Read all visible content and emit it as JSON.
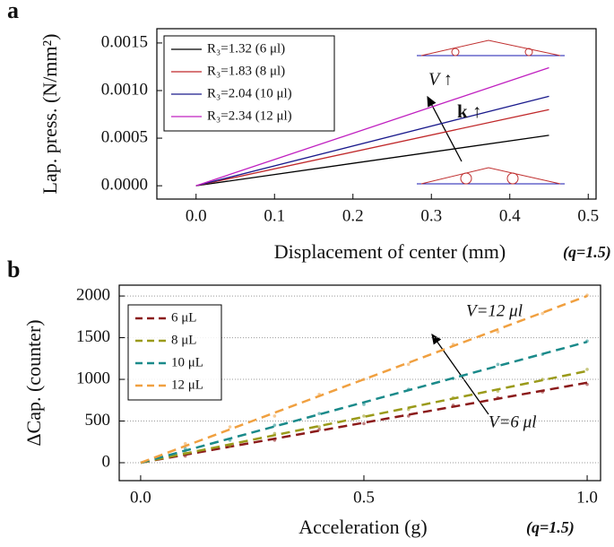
{
  "chart_data": [
    {
      "type": "line",
      "title": "a",
      "x_label": "Displacement of center (mm)",
      "x_label_note": "(q=1.5)",
      "y_label": "Lap. press. (N/mm²)",
      "x": [
        0,
        0.45
      ],
      "series": [
        {
          "name": "R₃=1.32 (6 μl)",
          "color": "#000000",
          "values": [
            0,
            0.00053
          ]
        },
        {
          "name": "R₃=1.83 (8 μl)",
          "color": "#c0282a",
          "values": [
            0,
            0.0008
          ]
        },
        {
          "name": "R₃=2.04 (10 μl)",
          "color": "#1a1a8c",
          "values": [
            0,
            0.00094
          ]
        },
        {
          "name": "R₃=2.34 (12 μl)",
          "color": "#c020c0",
          "values": [
            0,
            0.00124
          ]
        }
      ],
      "xlim": [
        -0.05,
        0.51
      ],
      "xticks": [
        {
          "value": 0,
          "label": "0.0"
        },
        0.1,
        0.2,
        0.3,
        0.4,
        0.5
      ],
      "ylim": [
        -0.00014,
        0.00165
      ],
      "yticks": [
        {
          "value": 0,
          "label": "0.0000"
        },
        {
          "value": 0.0005,
          "label": "0.0005"
        },
        {
          "value": 0.001,
          "label": "0.0010"
        },
        {
          "value": 0.0015,
          "label": "0.0015"
        }
      ],
      "grid": false,
      "dashed": false,
      "legend": "upper left",
      "annotations": [
        {
          "text": "V ↑",
          "color": "#000000",
          "style": "italic"
        },
        {
          "text": "k ↑",
          "color": "#e00000",
          "style": "bold"
        }
      ]
    },
    {
      "type": "line",
      "title": "b",
      "x_label": "Acceleration (g)",
      "x_label_note": "(q=1.5)",
      "y_label": "ΔCap. (counter)",
      "x": [
        0,
        1
      ],
      "series": [
        {
          "name": "6 μL",
          "color": "#8b1a1a",
          "values": [
            0,
            960
          ],
          "points_x": [
            0.1,
            0.2,
            0.3,
            0.4,
            0.5,
            0.6,
            0.7,
            0.8,
            0.9,
            1.0
          ],
          "points_y": [
            80,
            210,
            270,
            400,
            470,
            560,
            690,
            780,
            850,
            940
          ]
        },
        {
          "name": "8 μL",
          "color": "#9a9a1a",
          "values": [
            0,
            1100
          ],
          "points_x": [
            0.1,
            0.2,
            0.3,
            0.4,
            0.5,
            0.6,
            0.7,
            0.8,
            0.9,
            1.0
          ],
          "points_y": [
            120,
            200,
            350,
            430,
            560,
            640,
            780,
            860,
            1000,
            1120
          ]
        },
        {
          "name": "10 μL",
          "color": "#1a8a8a",
          "values": [
            0,
            1450
          ],
          "points_x": [
            0.1,
            0.2,
            0.3,
            0.4,
            0.5,
            0.6,
            0.7,
            0.8,
            0.9,
            1.0
          ],
          "points_y": [
            170,
            270,
            450,
            590,
            700,
            880,
            1010,
            1180,
            1300,
            1460
          ]
        },
        {
          "name": "12 μL",
          "color": "#f0a040",
          "values": [
            0,
            2000
          ],
          "points_x": [
            0.1,
            0.2,
            0.3,
            0.4,
            0.5,
            0.6,
            0.7,
            0.8,
            0.9,
            1.0
          ],
          "points_y": [
            230,
            430,
            560,
            820,
            1000,
            1180,
            1420,
            1570,
            1790,
            2010
          ]
        }
      ],
      "xlim": [
        -0.048,
        1.03
      ],
      "xticks": [
        {
          "value": 0,
          "label": "0.0"
        },
        0.5,
        {
          "value": 1,
          "label": "1.0"
        }
      ],
      "ylim": [
        -215,
        2130
      ],
      "yticks": [
        0,
        500,
        1000,
        1500,
        2000
      ],
      "grid": true,
      "dashed": true,
      "legend": "upper left",
      "annotations": [
        {
          "text": "V=12 μl",
          "color": "#000000",
          "style": "italic"
        },
        {
          "text": "V=6 μl",
          "color": "#000000",
          "style": "italic"
        }
      ]
    }
  ]
}
